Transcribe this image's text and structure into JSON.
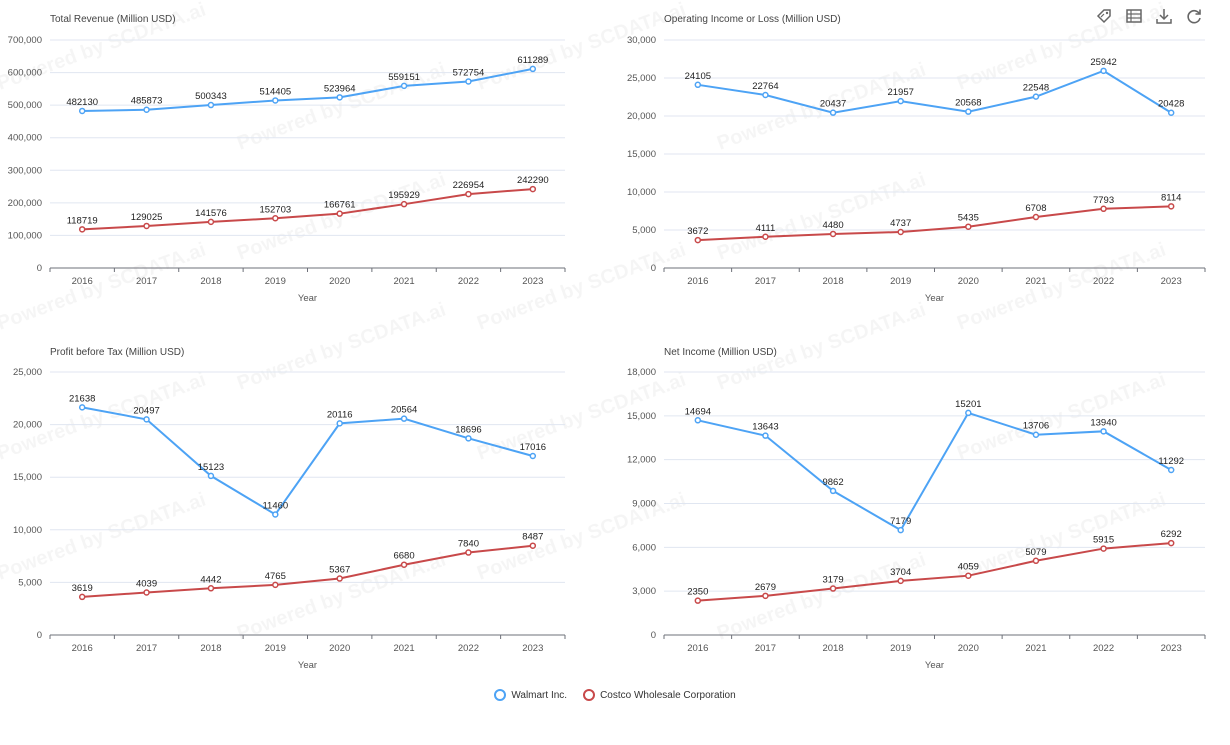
{
  "watermark": "Powered by SCDATA.ai",
  "legend": [
    {
      "name": "Walmart Inc.",
      "color": "#4da3f5"
    },
    {
      "name": "Costco Wholesale Corporation",
      "color": "#c8494a"
    }
  ],
  "toolbar": [
    {
      "icon": "tag-icon"
    },
    {
      "icon": "data-view-icon"
    },
    {
      "icon": "download-icon"
    },
    {
      "icon": "refresh-icon"
    }
  ],
  "chart_data": [
    {
      "type": "line",
      "title": "Total Revenue (Million USD)",
      "xlabel": "Year",
      "ylabel": "",
      "ylim": [
        0,
        700000
      ],
      "yticks": [
        "0",
        "100,000",
        "200,000",
        "300,000",
        "400,000",
        "500,000",
        "600,000",
        "700,000"
      ],
      "categories": [
        "2016",
        "2017",
        "2018",
        "2019",
        "2020",
        "2021",
        "2022",
        "2023"
      ],
      "series": [
        {
          "name": "Walmart Inc.",
          "values": [
            482130,
            485873,
            500343,
            514405,
            523964,
            559151,
            572754,
            611289
          ]
        },
        {
          "name": "Costco Wholesale Corporation",
          "values": [
            118719,
            129025,
            141576,
            152703,
            166761,
            195929,
            226954,
            242290
          ]
        }
      ]
    },
    {
      "type": "line",
      "title": "Operating Income or Loss (Million USD)",
      "xlabel": "Year",
      "ylabel": "",
      "ylim": [
        0,
        30000
      ],
      "yticks": [
        "0",
        "5,000",
        "10,000",
        "15,000",
        "20,000",
        "25,000",
        "30,000"
      ],
      "categories": [
        "2016",
        "2017",
        "2018",
        "2019",
        "2020",
        "2021",
        "2022",
        "2023"
      ],
      "series": [
        {
          "name": "Walmart Inc.",
          "values": [
            24105,
            22764,
            20437,
            21957,
            20568,
            22548,
            25942,
            20428
          ]
        },
        {
          "name": "Costco Wholesale Corporation",
          "values": [
            3672,
            4111,
            4480,
            4737,
            5435,
            6708,
            7793,
            8114
          ]
        }
      ]
    },
    {
      "type": "line",
      "title": "Profit before Tax (Million USD)",
      "xlabel": "Year",
      "ylabel": "",
      "ylim": [
        0,
        25000
      ],
      "yticks": [
        "0",
        "5,000",
        "10,000",
        "15,000",
        "20,000",
        "25,000"
      ],
      "categories": [
        "2016",
        "2017",
        "2018",
        "2019",
        "2020",
        "2021",
        "2022",
        "2023"
      ],
      "series": [
        {
          "name": "Walmart Inc.",
          "values": [
            21638,
            20497,
            15123,
            11460,
            20116,
            20564,
            18696,
            17016
          ]
        },
        {
          "name": "Costco Wholesale Corporation",
          "values": [
            3619,
            4039,
            4442,
            4765,
            5367,
            6680,
            7840,
            8487
          ]
        }
      ]
    },
    {
      "type": "line",
      "title": "Net Income (Million USD)",
      "xlabel": "Year",
      "ylabel": "",
      "ylim": [
        0,
        18000
      ],
      "yticks": [
        "0",
        "3,000",
        "6,000",
        "9,000",
        "12,000",
        "15,000",
        "18,000"
      ],
      "categories": [
        "2016",
        "2017",
        "2018",
        "2019",
        "2020",
        "2021",
        "2022",
        "2023"
      ],
      "series": [
        {
          "name": "Walmart Inc.",
          "values": [
            14694,
            13643,
            9862,
            7179,
            15201,
            13706,
            13940,
            11292
          ]
        },
        {
          "name": "Costco Wholesale Corporation",
          "values": [
            2350,
            2679,
            3179,
            3704,
            4059,
            5079,
            5915,
            6292
          ]
        }
      ]
    }
  ]
}
